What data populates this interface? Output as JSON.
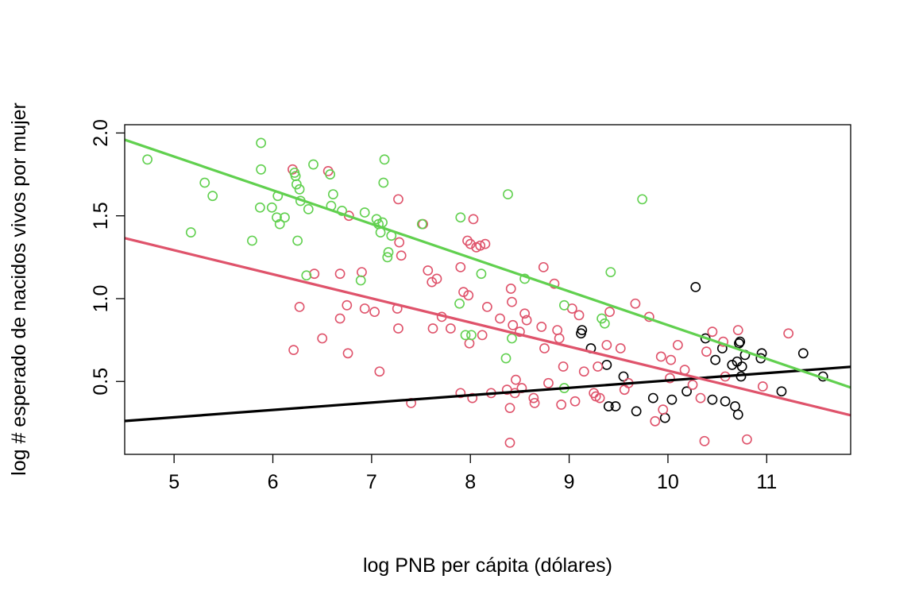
{
  "chart_data": {
    "type": "scatter",
    "title": "",
    "xlabel": "log PNB per cápita (dólares)",
    "ylabel": "log # esperado de nacidos vivos por mujer",
    "xlim": [
      4.5,
      11.85
    ],
    "ylim": [
      0.06,
      2.05
    ],
    "x_ticks": [
      5,
      6,
      7,
      8,
      9,
      10,
      11
    ],
    "y_ticks": [
      0.5,
      1.0,
      1.5,
      2.0
    ],
    "y_tick_labels": [
      "0.5",
      "1.0",
      "1.5",
      "2.0"
    ],
    "grid": false,
    "legend": "none",
    "series": [
      {
        "color": "#000000",
        "fit_line": {
          "intercept": 0.061,
          "slope": 0.0445
        },
        "points": [
          [
            9.12,
            0.79
          ],
          [
            9.13,
            0.81
          ],
          [
            9.22,
            0.7
          ],
          [
            9.38,
            0.6
          ],
          [
            9.4,
            0.35
          ],
          [
            9.47,
            0.35
          ],
          [
            9.55,
            0.53
          ],
          [
            9.68,
            0.32
          ],
          [
            9.85,
            0.4
          ],
          [
            9.97,
            0.28
          ],
          [
            10.04,
            0.39
          ],
          [
            10.19,
            0.44
          ],
          [
            10.28,
            1.07
          ],
          [
            10.38,
            0.76
          ],
          [
            10.45,
            0.39
          ],
          [
            10.48,
            0.63
          ],
          [
            10.55,
            0.7
          ],
          [
            10.58,
            0.38
          ],
          [
            10.65,
            0.6
          ],
          [
            10.68,
            0.35
          ],
          [
            10.7,
            0.62
          ],
          [
            10.71,
            0.3
          ],
          [
            10.72,
            0.73
          ],
          [
            10.73,
            0.74
          ],
          [
            10.74,
            0.53
          ],
          [
            10.75,
            0.59
          ],
          [
            10.78,
            0.66
          ],
          [
            10.94,
            0.64
          ],
          [
            10.95,
            0.67
          ],
          [
            11.15,
            0.44
          ],
          [
            11.37,
            0.67
          ],
          [
            11.57,
            0.53
          ]
        ]
      },
      {
        "color": "#df536b",
        "fit_line": {
          "intercept": 2.02,
          "slope": -0.1455
        },
        "points": [
          [
            6.2,
            1.78
          ],
          [
            6.21,
            0.69
          ],
          [
            6.27,
            0.95
          ],
          [
            6.42,
            1.15
          ],
          [
            6.5,
            0.76
          ],
          [
            6.56,
            1.77
          ],
          [
            6.68,
            0.88
          ],
          [
            6.68,
            1.15
          ],
          [
            6.75,
            0.96
          ],
          [
            6.76,
            0.67
          ],
          [
            6.77,
            1.5
          ],
          [
            6.9,
            1.16
          ],
          [
            6.93,
            0.94
          ],
          [
            7.03,
            0.92
          ],
          [
            7.08,
            0.56
          ],
          [
            7.26,
            0.94
          ],
          [
            7.27,
            0.82
          ],
          [
            7.27,
            1.6
          ],
          [
            7.28,
            1.34
          ],
          [
            7.3,
            1.26
          ],
          [
            7.4,
            0.37
          ],
          [
            7.52,
            1.45
          ],
          [
            7.57,
            1.17
          ],
          [
            7.61,
            1.1
          ],
          [
            7.62,
            0.82
          ],
          [
            7.66,
            1.12
          ],
          [
            7.71,
            0.89
          ],
          [
            7.8,
            0.82
          ],
          [
            7.9,
            1.19
          ],
          [
            7.9,
            0.43
          ],
          [
            7.93,
            1.04
          ],
          [
            7.97,
            1.35
          ],
          [
            7.98,
            1.02
          ],
          [
            7.99,
            0.73
          ],
          [
            8.0,
            1.33
          ],
          [
            8.02,
            0.4
          ],
          [
            8.03,
            1.48
          ],
          [
            8.06,
            1.31
          ],
          [
            8.1,
            1.32
          ],
          [
            8.12,
            0.78
          ],
          [
            8.15,
            1.33
          ],
          [
            8.17,
            0.95
          ],
          [
            8.21,
            0.43
          ],
          [
            8.3,
            0.88
          ],
          [
            8.37,
            0.45
          ],
          [
            8.4,
            0.34
          ],
          [
            8.4,
            0.13
          ],
          [
            8.41,
            1.06
          ],
          [
            8.42,
            0.98
          ],
          [
            8.43,
            0.84
          ],
          [
            8.45,
            0.43
          ],
          [
            8.46,
            0.51
          ],
          [
            8.5,
            0.8
          ],
          [
            8.52,
            0.46
          ],
          [
            8.55,
            0.91
          ],
          [
            8.57,
            0.87
          ],
          [
            8.64,
            0.4
          ],
          [
            8.65,
            0.37
          ],
          [
            8.72,
            0.83
          ],
          [
            8.74,
            1.19
          ],
          [
            8.75,
            0.7
          ],
          [
            8.79,
            0.49
          ],
          [
            8.85,
            1.09
          ],
          [
            8.88,
            0.81
          ],
          [
            8.9,
            0.76
          ],
          [
            8.92,
            0.36
          ],
          [
            8.94,
            0.59
          ],
          [
            9.03,
            0.94
          ],
          [
            9.06,
            0.38
          ],
          [
            9.1,
            0.9
          ],
          [
            9.15,
            0.56
          ],
          [
            9.25,
            0.43
          ],
          [
            9.27,
            0.41
          ],
          [
            9.29,
            0.59
          ],
          [
            9.31,
            0.4
          ],
          [
            9.38,
            0.72
          ],
          [
            9.41,
            0.92
          ],
          [
            9.52,
            0.7
          ],
          [
            9.56,
            0.45
          ],
          [
            9.6,
            0.49
          ],
          [
            9.67,
            0.97
          ],
          [
            9.81,
            0.89
          ],
          [
            9.87,
            0.26
          ],
          [
            9.93,
            0.65
          ],
          [
            9.95,
            0.33
          ],
          [
            10.02,
            0.52
          ],
          [
            10.03,
            0.63
          ],
          [
            10.1,
            0.72
          ],
          [
            10.17,
            0.57
          ],
          [
            10.25,
            0.48
          ],
          [
            10.33,
            0.4
          ],
          [
            10.37,
            0.14
          ],
          [
            10.39,
            0.68
          ],
          [
            10.45,
            0.8
          ],
          [
            10.56,
            0.74
          ],
          [
            10.58,
            0.53
          ],
          [
            10.71,
            0.81
          ],
          [
            10.8,
            0.15
          ],
          [
            10.96,
            0.47
          ],
          [
            11.22,
            0.79
          ]
        ]
      },
      {
        "color": "#61d04f",
        "fit_line": {
          "intercept": 2.875,
          "slope": -0.2035
        },
        "points": [
          [
            4.73,
            1.84
          ],
          [
            5.17,
            1.4
          ],
          [
            5.31,
            1.7
          ],
          [
            5.39,
            1.62
          ],
          [
            5.79,
            1.35
          ],
          [
            5.87,
            1.55
          ],
          [
            5.88,
            1.78
          ],
          [
            5.88,
            1.94
          ],
          [
            5.99,
            1.55
          ],
          [
            6.04,
            1.49
          ],
          [
            6.05,
            1.62
          ],
          [
            6.07,
            1.45
          ],
          [
            6.12,
            1.49
          ],
          [
            6.22,
            1.76
          ],
          [
            6.23,
            1.74
          ],
          [
            6.24,
            1.69
          ],
          [
            6.25,
            1.35
          ],
          [
            6.27,
            1.66
          ],
          [
            6.28,
            1.59
          ],
          [
            6.34,
            1.14
          ],
          [
            6.36,
            1.54
          ],
          [
            6.41,
            1.81
          ],
          [
            6.58,
            1.75
          ],
          [
            6.59,
            1.56
          ],
          [
            6.61,
            1.63
          ],
          [
            6.7,
            1.53
          ],
          [
            6.89,
            1.11
          ],
          [
            6.93,
            1.52
          ],
          [
            7.05,
            1.48
          ],
          [
            7.07,
            1.45
          ],
          [
            7.09,
            1.4
          ],
          [
            7.11,
            1.46
          ],
          [
            7.12,
            1.7
          ],
          [
            7.13,
            1.84
          ],
          [
            7.16,
            1.25
          ],
          [
            7.17,
            1.28
          ],
          [
            7.2,
            1.38
          ],
          [
            7.51,
            1.45
          ],
          [
            7.89,
            0.97
          ],
          [
            7.9,
            1.49
          ],
          [
            7.95,
            0.78
          ],
          [
            8.01,
            0.78
          ],
          [
            8.11,
            1.15
          ],
          [
            8.36,
            0.64
          ],
          [
            8.38,
            1.63
          ],
          [
            8.42,
            0.76
          ],
          [
            8.55,
            1.12
          ],
          [
            8.95,
            0.96
          ],
          [
            8.95,
            0.46
          ],
          [
            9.33,
            0.88
          ],
          [
            9.36,
            0.85
          ],
          [
            9.42,
            1.16
          ],
          [
            9.74,
            1.6
          ]
        ]
      }
    ]
  }
}
